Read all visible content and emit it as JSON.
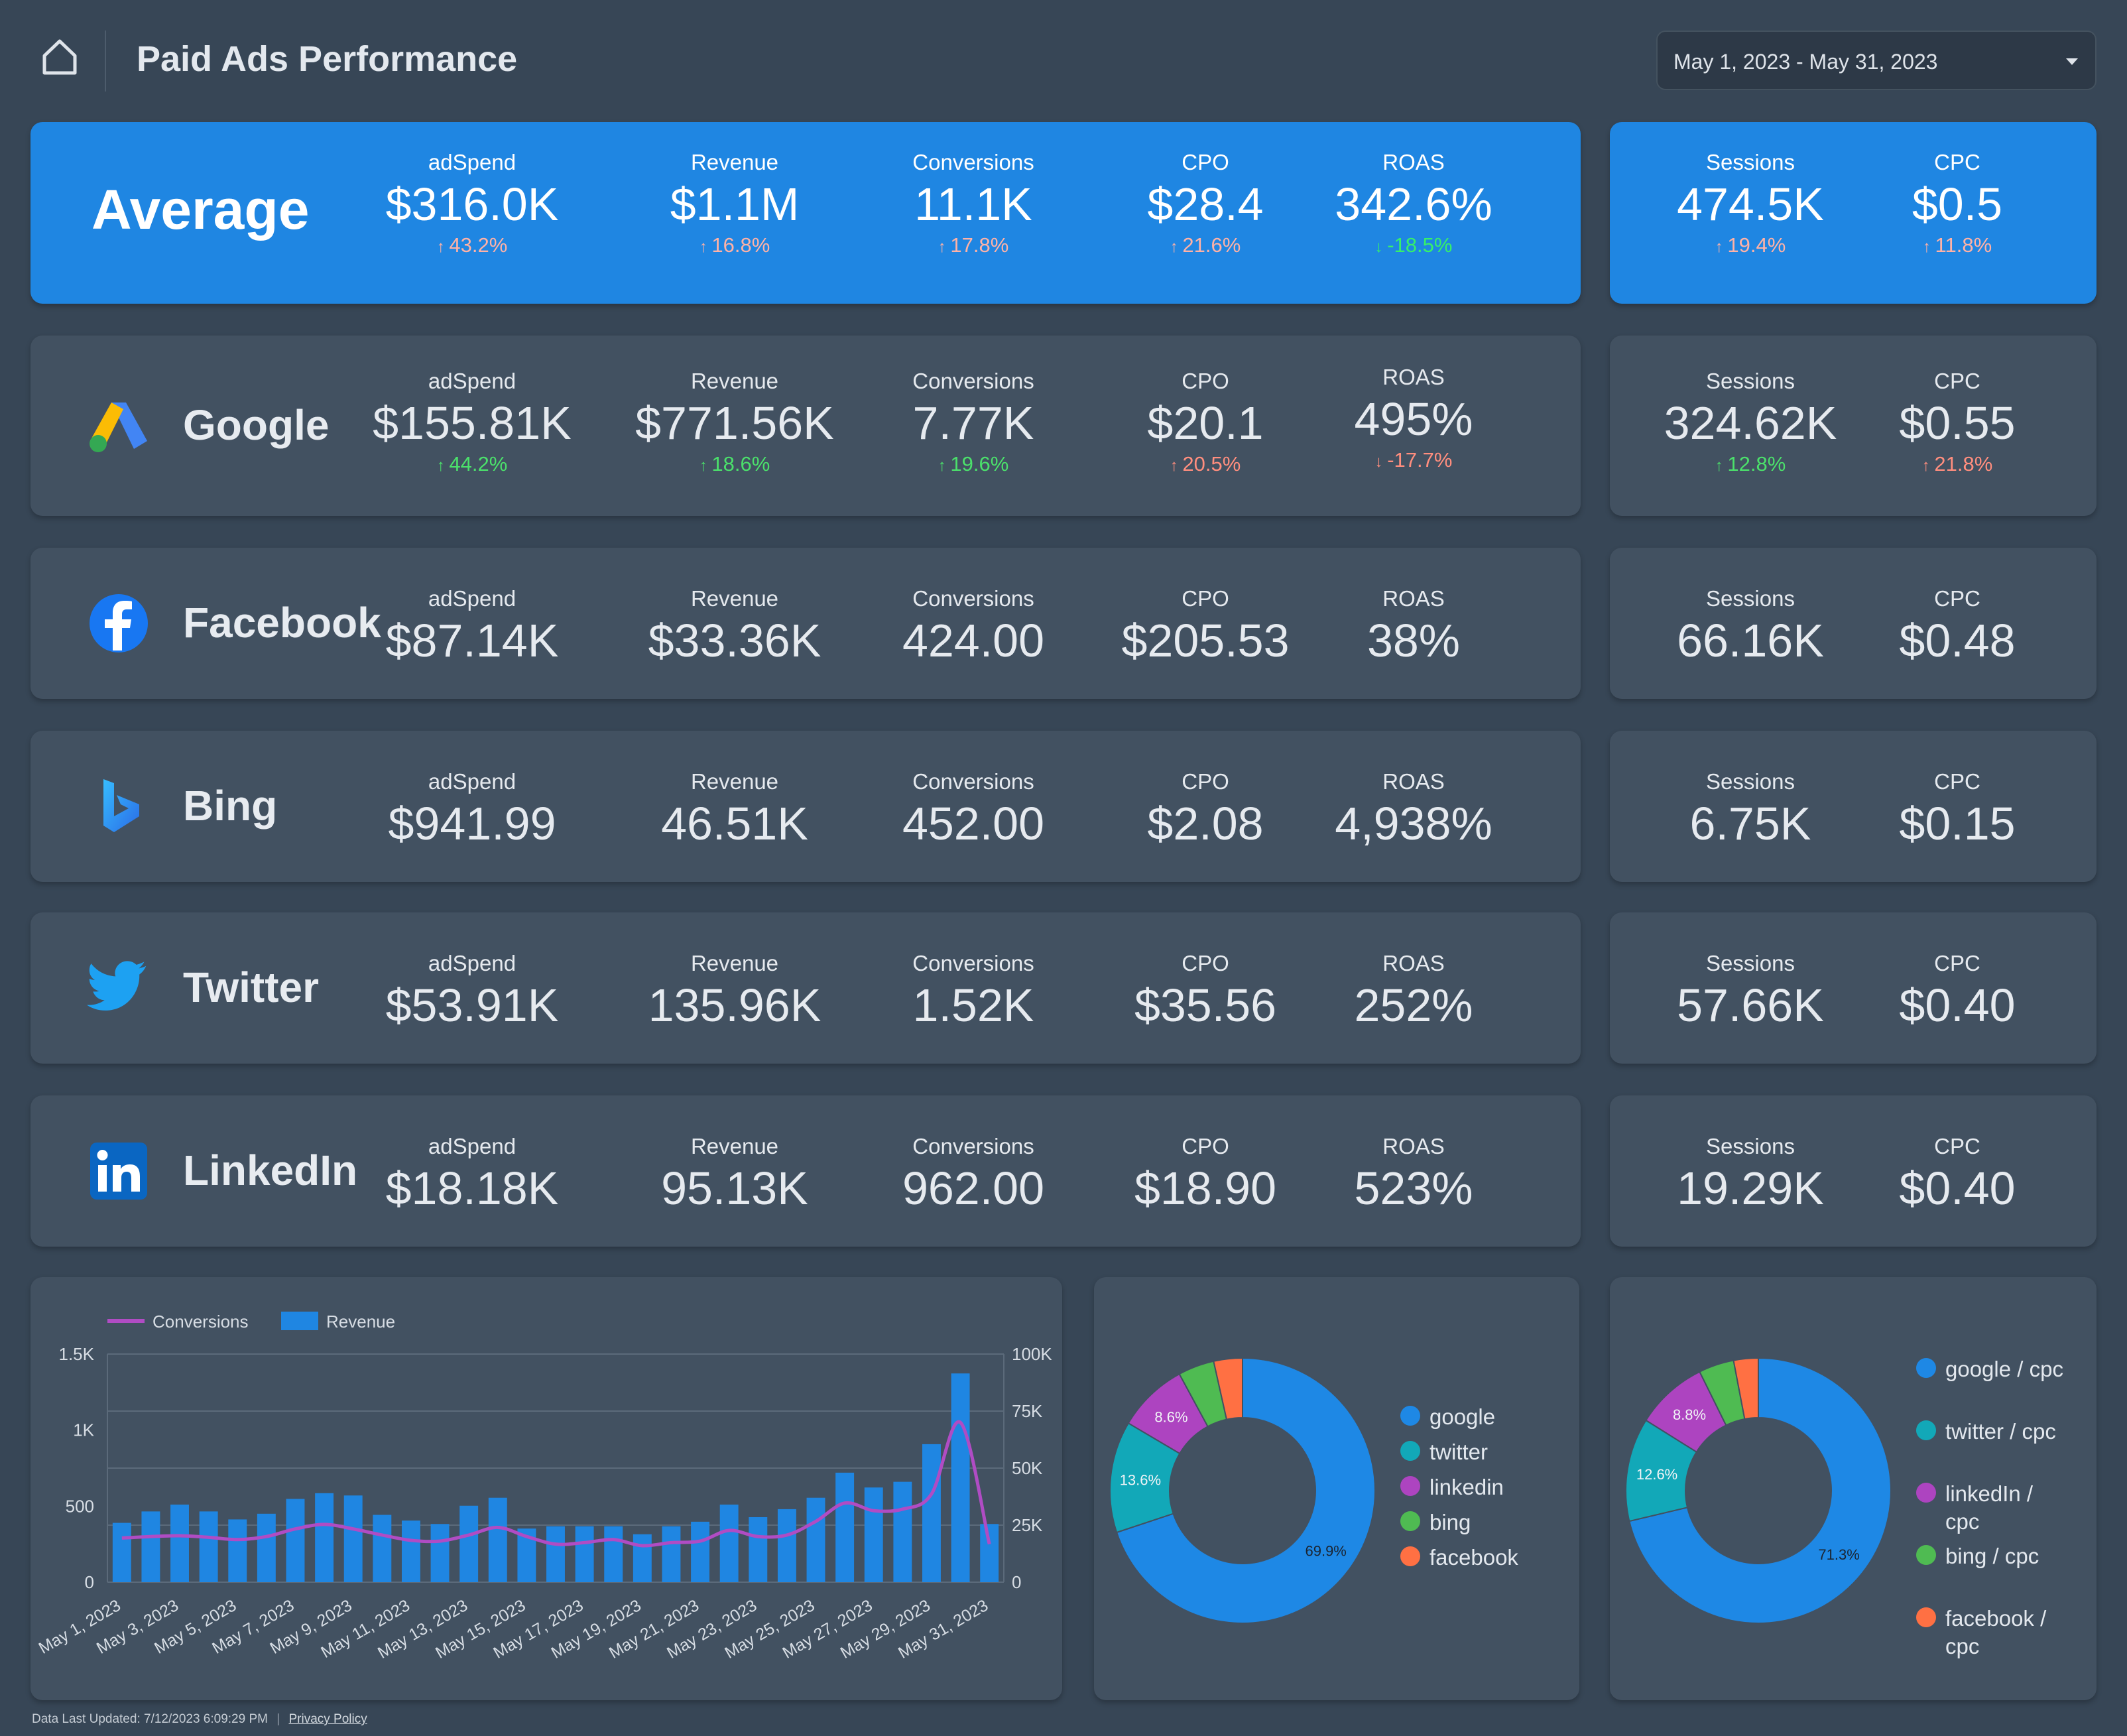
{
  "header": {
    "title": "Paid Ads Performance",
    "date_range": "May 1, 2023 - May 31, 2023"
  },
  "average": {
    "label": "Average",
    "metrics": [
      {
        "label": "adSpend",
        "value": "$316.0K",
        "change": "43.2%",
        "dir": "up",
        "tone": "red"
      },
      {
        "label": "Revenue",
        "value": "$1.1M",
        "change": "16.8%",
        "dir": "up",
        "tone": "red"
      },
      {
        "label": "Conversions",
        "value": "11.1K",
        "change": "17.8%",
        "dir": "up",
        "tone": "red"
      },
      {
        "label": "CPO",
        "value": "$28.4",
        "change": "21.6%",
        "dir": "up",
        "tone": "red"
      },
      {
        "label": "ROAS",
        "value": "342.6%",
        "change": "-18.5%",
        "dir": "down",
        "tone": "green"
      }
    ],
    "side": [
      {
        "label": "Sessions",
        "value": "474.5K",
        "change": "19.4%",
        "dir": "up",
        "tone": "red"
      },
      {
        "label": "CPC",
        "value": "$0.5",
        "change": "11.8%",
        "dir": "up",
        "tone": "red"
      }
    ]
  },
  "platforms": [
    {
      "name": "Google",
      "logo": "google-ads-logo",
      "metrics": [
        {
          "label": "adSpend",
          "value": "$155.81K",
          "change": "44.2%",
          "dir": "up",
          "tone": "green"
        },
        {
          "label": "Revenue",
          "value": "$771.56K",
          "change": "18.6%",
          "dir": "up",
          "tone": "green"
        },
        {
          "label": "Conversions",
          "value": "7.77K",
          "change": "19.6%",
          "dir": "up",
          "tone": "green"
        },
        {
          "label": "CPO",
          "value": "$20.1",
          "change": "20.5%",
          "dir": "up",
          "tone": "red"
        },
        {
          "label": "ROAS",
          "value": "495%",
          "change": "-17.7%",
          "dir": "down",
          "tone": "red"
        }
      ],
      "side": [
        {
          "label": "Sessions",
          "value": "324.62K",
          "change": "12.8%",
          "dir": "up",
          "tone": "green"
        },
        {
          "label": "CPC",
          "value": "$0.55",
          "change": "21.8%",
          "dir": "up",
          "tone": "red"
        }
      ]
    },
    {
      "name": "Facebook",
      "logo": "facebook-logo",
      "metrics": [
        {
          "label": "adSpend",
          "value": "$87.14K"
        },
        {
          "label": "Revenue",
          "value": "$33.36K"
        },
        {
          "label": "Conversions",
          "value": "424.00"
        },
        {
          "label": "CPO",
          "value": "$205.53"
        },
        {
          "label": "ROAS",
          "value": "38%"
        }
      ],
      "side": [
        {
          "label": "Sessions",
          "value": "66.16K"
        },
        {
          "label": "CPC",
          "value": "$0.48"
        }
      ]
    },
    {
      "name": "Bing",
      "logo": "bing-logo",
      "metrics": [
        {
          "label": "adSpend",
          "value": "$941.99"
        },
        {
          "label": "Revenue",
          "value": "46.51K"
        },
        {
          "label": "Conversions",
          "value": "452.00"
        },
        {
          "label": "CPO",
          "value": "$2.08"
        },
        {
          "label": "ROAS",
          "value": "4,938%"
        }
      ],
      "side": [
        {
          "label": "Sessions",
          "value": "6.75K"
        },
        {
          "label": "CPC",
          "value": "$0.15"
        }
      ]
    },
    {
      "name": "Twitter",
      "logo": "twitter-logo",
      "metrics": [
        {
          "label": "adSpend",
          "value": "$53.91K"
        },
        {
          "label": "Revenue",
          "value": "135.96K"
        },
        {
          "label": "Conversions",
          "value": "1.52K"
        },
        {
          "label": "CPO",
          "value": "$35.56"
        },
        {
          "label": "ROAS",
          "value": "252%"
        }
      ],
      "side": [
        {
          "label": "Sessions",
          "value": "57.66K"
        },
        {
          "label": "CPC",
          "value": "$0.40"
        }
      ]
    },
    {
      "name": "LinkedIn",
      "logo": "linkedin-logo",
      "metrics": [
        {
          "label": "adSpend",
          "value": "$18.18K"
        },
        {
          "label": "Revenue",
          "value": "95.13K"
        },
        {
          "label": "Conversions",
          "value": "962.00"
        },
        {
          "label": "CPO",
          "value": "$18.90"
        },
        {
          "label": "ROAS",
          "value": "523%"
        }
      ],
      "side": [
        {
          "label": "Sessions",
          "value": "19.29K"
        },
        {
          "label": "CPC",
          "value": "$0.40"
        }
      ]
    }
  ],
  "colors": {
    "background": "#374656",
    "card": "#425161",
    "accent": "#1f86e2",
    "conversions_line": "#b04cc4",
    "revenue_bar": "#1f86e2",
    "google": "#1e88e5",
    "twitter": "#12a8b8",
    "linkedin": "#ad44c0",
    "bing": "#4fbb52",
    "facebook": "#ff7043"
  },
  "chart_data": [
    {
      "type": "bar",
      "legend": [
        "Conversions",
        "Revenue"
      ],
      "categories": [
        "May 1, 2023",
        "May 2, 2023",
        "May 3, 2023",
        "May 4, 2023",
        "May 5, 2023",
        "May 6, 2023",
        "May 7, 2023",
        "May 8, 2023",
        "May 9, 2023",
        "May 10, 2023",
        "May 11, 2023",
        "May 12, 2023",
        "May 13, 2023",
        "May 14, 2023",
        "May 15, 2023",
        "May 16, 2023",
        "May 17, 2023",
        "May 18, 2023",
        "May 19, 2023",
        "May 20, 2023",
        "May 21, 2023",
        "May 22, 2023",
        "May 23, 2023",
        "May 24, 2023",
        "May 25, 2023",
        "May 26, 2023",
        "May 27, 2023",
        "May 28, 2023",
        "May 29, 2023",
        "May 30, 2023",
        "May 31, 2023"
      ],
      "x_tick_labels": [
        "May 1, 2023",
        "May 3, 2023",
        "May 5, 2023",
        "May 7, 2023",
        "May 9, 2023",
        "May 11, 2023",
        "May 13, 2023",
        "May 15, 2023",
        "May 17, 2023",
        "May 19, 2023",
        "May 21, 2023",
        "May 23, 2023",
        "May 25, 2023",
        "May 27, 2023",
        "May 29, 2023",
        "May 31, 2023"
      ],
      "series": [
        {
          "name": "Revenue",
          "axis": "right",
          "values": [
            26000,
            31000,
            34000,
            31000,
            27500,
            30000,
            36500,
            39000,
            38000,
            29500,
            27000,
            25500,
            33500,
            37000,
            23500,
            24500,
            24500,
            24500,
            21000,
            24500,
            26500,
            34000,
            28500,
            32000,
            37000,
            48000,
            41500,
            44000,
            60500,
            91500,
            25500
          ]
        },
        {
          "name": "Conversions",
          "axis": "left",
          "values": [
            290,
            300,
            305,
            295,
            280,
            300,
            350,
            380,
            350,
            310,
            275,
            270,
            310,
            360,
            300,
            250,
            260,
            280,
            240,
            260,
            270,
            340,
            300,
            310,
            400,
            520,
            470,
            480,
            580,
            1050,
            250
          ]
        }
      ],
      "y_left": {
        "ticks": [
          "0",
          "500",
          "1K",
          "1.5K"
        ],
        "range": [
          0,
          1500
        ]
      },
      "y_right": {
        "ticks": [
          "0",
          "25K",
          "50K",
          "75K",
          "100K"
        ],
        "range": [
          0,
          100000
        ]
      },
      "grid": true,
      "legend_position": "top-left"
    },
    {
      "type": "pie",
      "donut": true,
      "labels": [
        "google",
        "twitter",
        "linkedin",
        "bing",
        "facebook"
      ],
      "values": [
        69.9,
        13.6,
        8.6,
        4.4,
        3.5
      ],
      "slice_labels": [
        "69.9%",
        "13.6%",
        "8.6%",
        "",
        ""
      ],
      "legend_position": "right"
    },
    {
      "type": "pie",
      "donut": true,
      "labels": [
        "google / cpc",
        "twitter / cpc",
        "linkedIn / cpc",
        "bing / cpc",
        "facebook / cpc"
      ],
      "values": [
        71.3,
        12.6,
        8.8,
        4.3,
        3.0
      ],
      "slice_labels": [
        "71.3%",
        "12.6%",
        "8.8%",
        "",
        ""
      ],
      "legend_position": "right"
    }
  ],
  "footer": {
    "updated": "Data Last Updated: 7/12/2023 6:09:29 PM",
    "privacy": "Privacy Policy"
  }
}
